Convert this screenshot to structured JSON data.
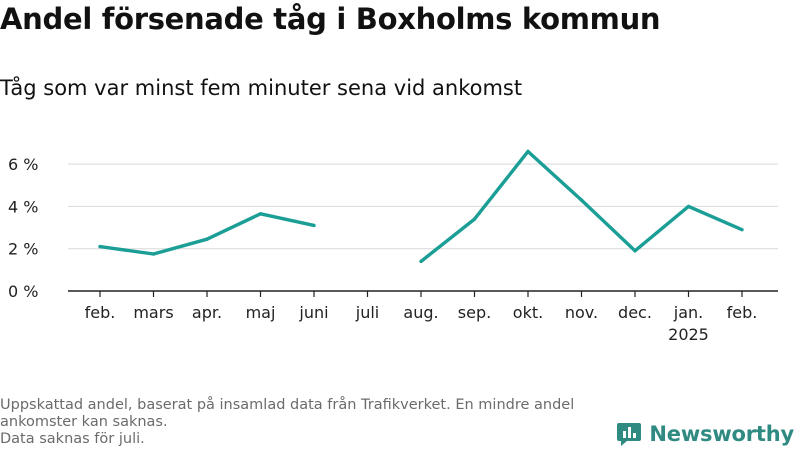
{
  "title": "Andel försenade tåg i Boxholms kommun",
  "subtitle": "Tåg som var minst fem minuter sena vid ankomst",
  "footer": {
    "line1": "Uppskattad andel, baserat på insamlad data från Trafikverket. En mindre andel ankomster kan saknas.",
    "line2": "Data saknas för juli."
  },
  "logo": {
    "text": "Newsworthy"
  },
  "colors": {
    "line": "#1a9e96",
    "grid": "#d9d9d9",
    "axis": "#222222",
    "logo": "#2f8a82"
  },
  "chart_data": {
    "type": "line",
    "title": "Andel försenade tåg i Boxholms kommun",
    "subtitle": "Tåg som var minst fem minuter sena vid ankomst",
    "categories": [
      "feb.",
      "mars",
      "apr.",
      "maj",
      "juni",
      "juli",
      "aug.",
      "sep.",
      "okt.",
      "nov.",
      "dec.",
      "jan.",
      "feb."
    ],
    "category_sublabels": [
      "",
      "",
      "",
      "",
      "",
      "",
      "",
      "",
      "",
      "",
      "",
      "2025",
      ""
    ],
    "values": [
      2.1,
      1.75,
      2.45,
      3.65,
      3.1,
      null,
      1.4,
      3.4,
      6.6,
      4.3,
      1.9,
      4.0,
      2.9
    ],
    "ylim": [
      0,
      7
    ],
    "yticks": [
      0,
      2,
      4,
      6
    ],
    "ytick_labels": [
      "0 %",
      "2 %",
      "4 %",
      "6 %"
    ],
    "grid": true,
    "xlabel": "",
    "ylabel": ""
  }
}
